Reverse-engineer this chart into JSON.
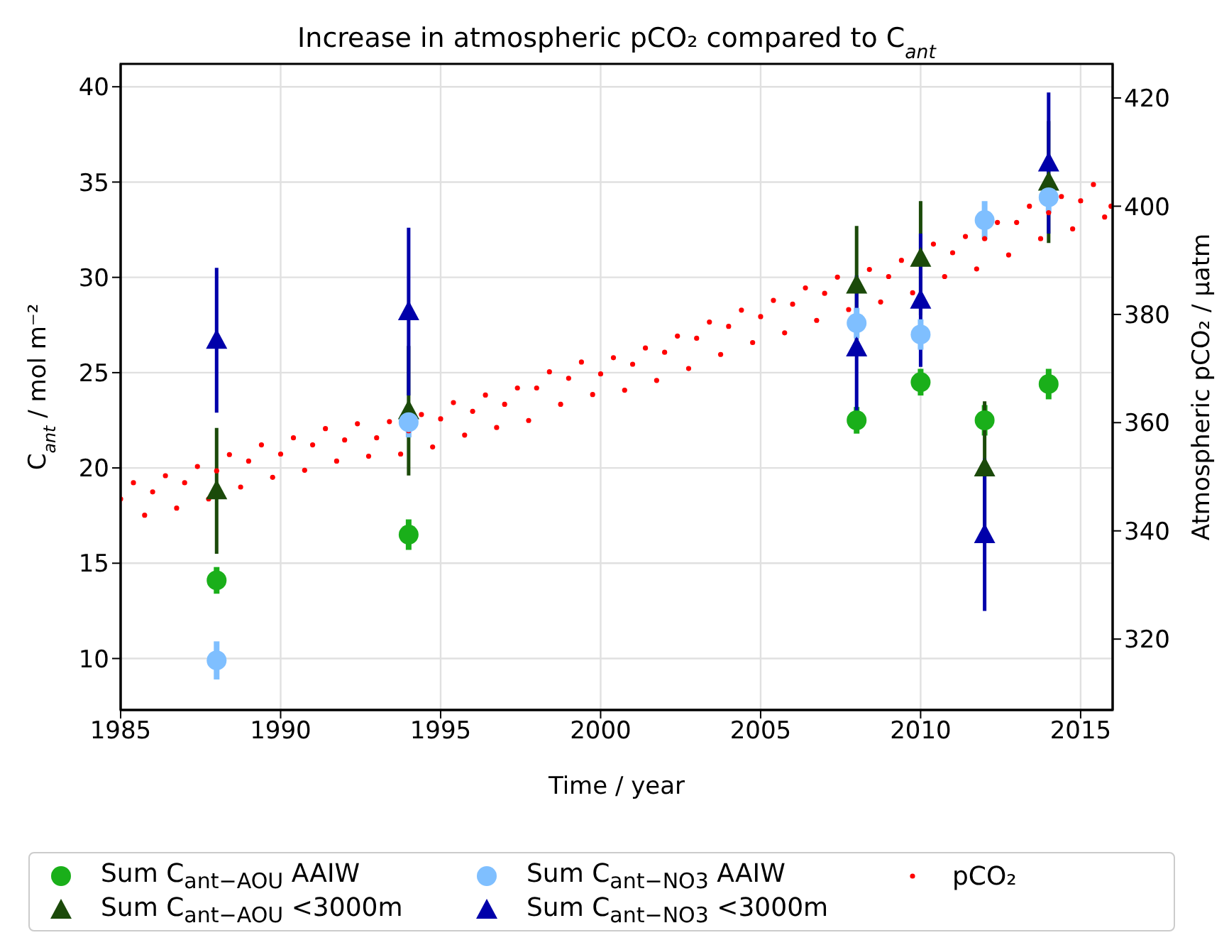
{
  "chart_data": {
    "type": "scatter",
    "title": "Increase in atmospheric pCO₂ compared to C$_{ant}$",
    "xlabel": "Time / year",
    "ylabel": "C$_{ant}$ / mol m⁻²",
    "y2label": "Atmospheric pCO₂ / µatm",
    "xlim": [
      1985,
      2016
    ],
    "xticks": [
      1985,
      1990,
      1995,
      2000,
      2005,
      2010,
      2015
    ],
    "ylim": [
      7.3,
      41.2
    ],
    "yticks": [
      10,
      15,
      20,
      25,
      30,
      35,
      40
    ],
    "y2lim": [
      306.9,
      426.3
    ],
    "y2ticks": [
      320,
      340,
      360,
      380,
      400,
      420
    ],
    "grid": true,
    "legend": "bottom",
    "series": [
      {
        "name": "Sum C$_{ant−AOU}$ AAIW",
        "color": "#1aaf1a",
        "marker": "circle",
        "x": [
          1988,
          1994,
          2008,
          2010,
          2012,
          2014
        ],
        "values": [
          14.1,
          16.5,
          22.5,
          24.5,
          22.5,
          24.4
        ],
        "errors": [
          0.7,
          0.8,
          0.7,
          0.7,
          0.8,
          0.8
        ]
      },
      {
        "name": "Sum C$_{ant−AOU}$ <3000m",
        "color": "#1b4a0a",
        "marker": "triangle",
        "x": [
          1988,
          1994,
          2008,
          2010,
          2012,
          2014
        ],
        "values": [
          18.8,
          23.0,
          29.6,
          31.0,
          20.0,
          35.0
        ],
        "errors": [
          3.3,
          3.4,
          3.1,
          3.0,
          3.5,
          3.2
        ]
      },
      {
        "name": "Sum C$_{ant−NO3}$ AAIW",
        "color": "#7fbfff",
        "marker": "circle",
        "x": [
          1988,
          1994,
          2008,
          2010,
          2012,
          2014
        ],
        "values": [
          9.9,
          22.4,
          27.6,
          27.0,
          33.0,
          34.2
        ],
        "errors": [
          1.0,
          0.8,
          0.8,
          0.8,
          1.0,
          0.8
        ]
      },
      {
        "name": "Sum C$_{ant−NO3}$ <3000m",
        "color": "#0000aa",
        "marker": "triangle",
        "x": [
          1988,
          1994,
          2008,
          2010,
          2012,
          2014
        ],
        "values": [
          26.7,
          28.2,
          26.3,
          28.8,
          16.5,
          36.0
        ],
        "errors": [
          3.8,
          4.4,
          3.8,
          3.5,
          4.0,
          3.7
        ]
      },
      {
        "name": "pCO₂",
        "color": "#ff0000",
        "marker": "dot",
        "axis": "y2",
        "x": [
          1985.0,
          1985.4,
          1985.75,
          1986.0,
          1986.4,
          1986.75,
          1987.0,
          1987.4,
          1987.75,
          1988.0,
          1988.4,
          1988.75,
          1989.0,
          1989.4,
          1989.75,
          1990.0,
          1990.4,
          1990.75,
          1991.0,
          1991.4,
          1991.75,
          1992.0,
          1992.4,
          1992.75,
          1993.0,
          1993.4,
          1993.75,
          1994.0,
          1994.4,
          1994.75,
          1995.0,
          1995.4,
          1995.75,
          1996.0,
          1996.4,
          1996.75,
          1997.0,
          1997.4,
          1997.75,
          1998.0,
          1998.4,
          1998.75,
          1999.0,
          1999.4,
          1999.75,
          2000.0,
          2000.4,
          2000.75,
          2001.0,
          2001.4,
          2001.75,
          2002.0,
          2002.4,
          2002.75,
          2003.0,
          2003.4,
          2003.75,
          2004.0,
          2004.4,
          2004.75,
          2005.0,
          2005.4,
          2005.75,
          2006.0,
          2006.4,
          2006.75,
          2007.0,
          2007.4,
          2007.75,
          2008.4,
          2008.75,
          2009.0,
          2009.4,
          2009.75,
          2010.4,
          2010.75,
          2011.0,
          2011.4,
          2011.75,
          2012.0,
          2012.4,
          2012.75,
          2013.0,
          2013.4,
          2013.75,
          2014.0,
          2014.4,
          2014.75,
          2015.0,
          2015.4,
          2015.75,
          2015.95
        ],
        "values": [
          345.9,
          348.9,
          342.9,
          347.2,
          350.2,
          344.2,
          348.9,
          351.9,
          345.9,
          351.1,
          354.1,
          348.1,
          352.9,
          355.9,
          349.9,
          354.2,
          357.2,
          351.2,
          355.9,
          358.9,
          352.9,
          356.8,
          359.8,
          353.8,
          357.2,
          360.2,
          354.2,
          358.5,
          361.5,
          355.5,
          360.7,
          363.7,
          357.7,
          362.1,
          365.1,
          359.1,
          363.4,
          366.4,
          360.4,
          366.4,
          369.4,
          363.4,
          368.2,
          371.2,
          365.2,
          369.0,
          372.0,
          366.0,
          370.8,
          373.8,
          367.8,
          373.0,
          376.0,
          370.0,
          375.6,
          378.6,
          372.6,
          377.8,
          380.8,
          374.8,
          379.6,
          382.6,
          376.6,
          381.9,
          384.9,
          378.9,
          383.9,
          386.9,
          380.9,
          388.3,
          382.3,
          387.0,
          390.0,
          384.0,
          393.0,
          387.0,
          391.4,
          394.4,
          388.4,
          394.0,
          397.0,
          391.0,
          397.0,
          400.0,
          394.0,
          398.8,
          401.8,
          395.8,
          401.0,
          404.0,
          398.0,
          400.0
        ]
      }
    ]
  }
}
